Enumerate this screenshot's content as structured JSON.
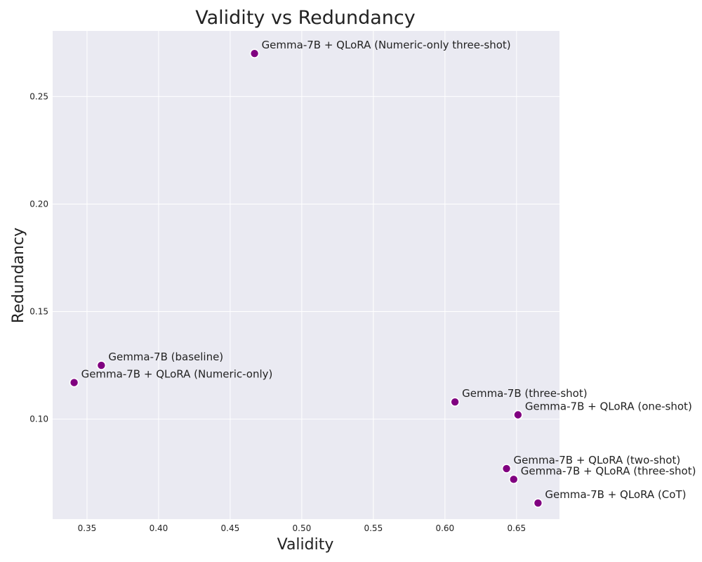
{
  "chart_data": {
    "type": "scatter",
    "title": "Validity vs Redundancy",
    "xlabel": "Validity",
    "ylabel": "Redundancy",
    "xlim": [
      0.326,
      0.68
    ],
    "ylim": [
      0.0535,
      0.2805
    ],
    "xticks": [
      0.35,
      0.4,
      0.45,
      0.5,
      0.55,
      0.6,
      0.65
    ],
    "xtick_labels": [
      "0.35",
      "0.40",
      "0.45",
      "0.50",
      "0.55",
      "0.60",
      "0.65"
    ],
    "yticks": [
      0.1,
      0.15,
      0.2,
      0.25
    ],
    "ytick_labels": [
      "0.10",
      "0.15",
      "0.20",
      "0.25"
    ],
    "grid": true,
    "marker_color": "#800080",
    "points": [
      {
        "label": "Gemma-7B + QLoRA (Numeric-only three-shot)",
        "x": 0.467,
        "y": 0.27
      },
      {
        "label": "Gemma-7B (baseline)",
        "x": 0.36,
        "y": 0.125
      },
      {
        "label": "Gemma-7B + QLoRA (Numeric-only)",
        "x": 0.341,
        "y": 0.117
      },
      {
        "label": "Gemma-7B (three-shot)",
        "x": 0.607,
        "y": 0.108
      },
      {
        "label": "Gemma-7B + QLoRA (one-shot)",
        "x": 0.651,
        "y": 0.102
      },
      {
        "label": "Gemma-7B + QLoRA (two-shot)",
        "x": 0.643,
        "y": 0.077
      },
      {
        "label": "Gemma-7B + QLoRA (three-shot)",
        "x": 0.648,
        "y": 0.072
      },
      {
        "label": "Gemma-7B + QLoRA (CoT)",
        "x": 0.665,
        "y": 0.061
      }
    ]
  }
}
